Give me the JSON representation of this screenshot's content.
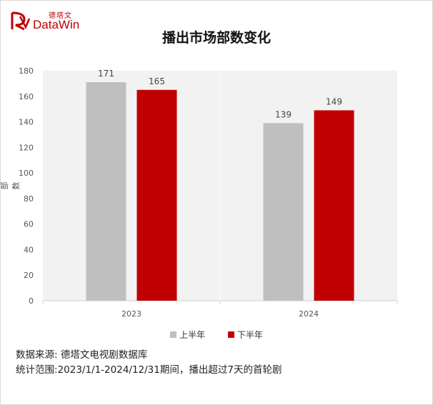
{
  "brand": {
    "cn": "德塔文",
    "en": "DataWin"
  },
  "colors": {
    "first_half": "#bfbfbf",
    "second_half": "#c00000",
    "plot_bg": "#f2f2f2",
    "brand": "#c00000"
  },
  "chart_data": {
    "type": "bar",
    "title": "播出市场部数变化",
    "ylabel": "部数",
    "xlabel": "",
    "categories": [
      "2023",
      "2024"
    ],
    "series": [
      {
        "name": "上半年",
        "values": [
          171,
          139
        ]
      },
      {
        "name": "下半年",
        "values": [
          165,
          149
        ]
      }
    ],
    "ylim": [
      0,
      180
    ],
    "yticks": [
      0,
      20,
      40,
      60,
      80,
      100,
      120,
      140,
      160,
      180
    ],
    "grid": "vertical category separators",
    "legend": "bottom-center"
  },
  "footnotes": {
    "source": "数据来源: 德塔文电视剧数据库",
    "scope": "统计范围:2023/1/1-2024/12/31期间，播出超过7天的首轮剧"
  }
}
